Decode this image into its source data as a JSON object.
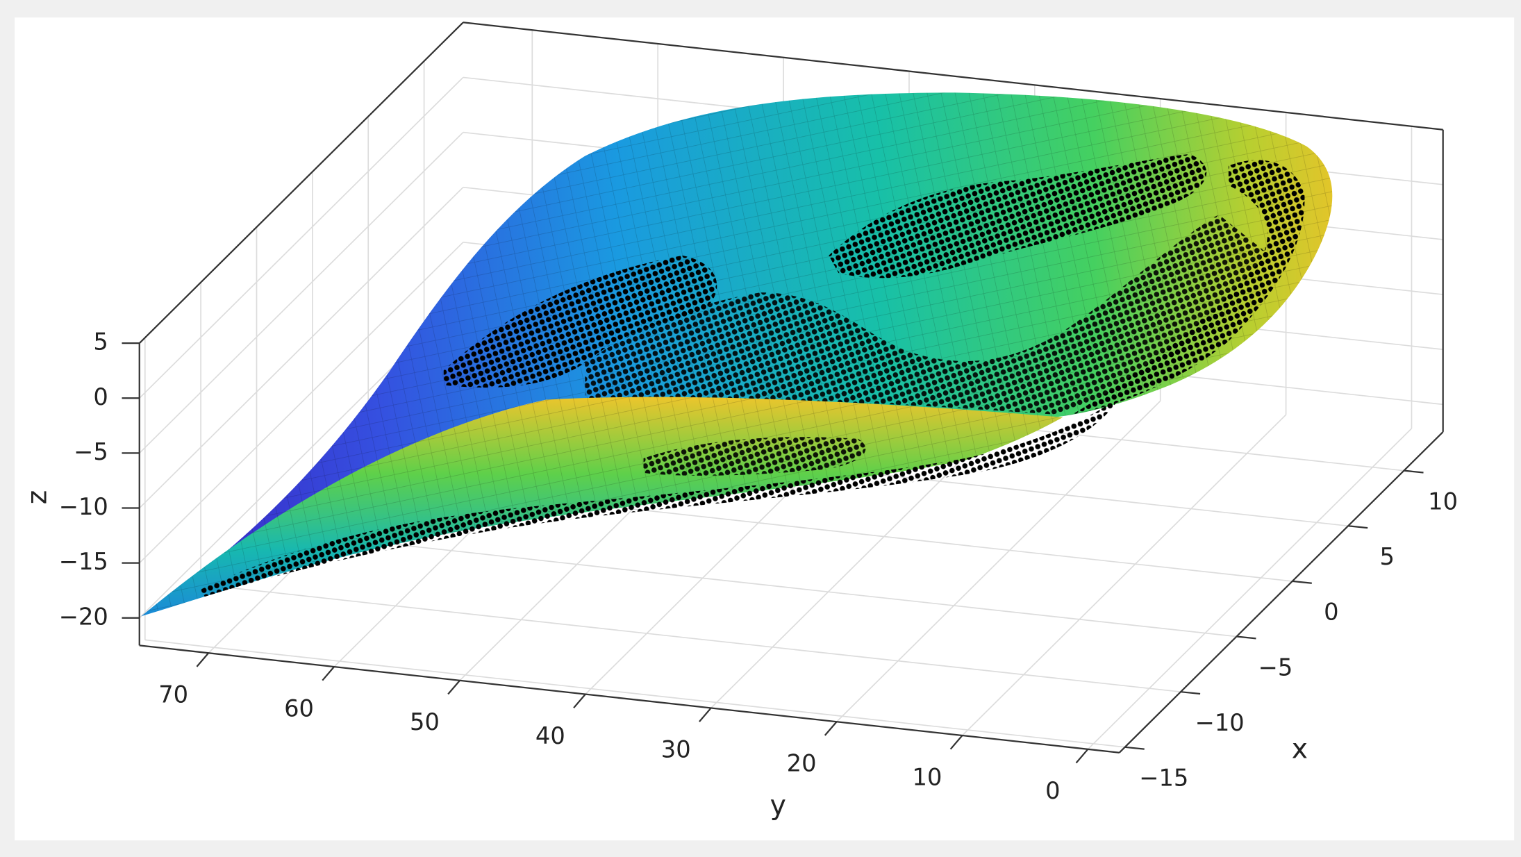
{
  "chart_data": {
    "type": "surface3d",
    "xlabel": "x",
    "ylabel": "y",
    "zlabel": "z",
    "xlim": [
      -15.5,
      13.5
    ],
    "ylim": [
      -2.5,
      75.5
    ],
    "zlim": [
      -22.5,
      5
    ],
    "xticks": [
      {
        "value": -15,
        "label": "−15"
      },
      {
        "value": -10,
        "label": "−10"
      },
      {
        "value": -5,
        "label": "−5"
      },
      0,
      5,
      10
    ],
    "yticks": [
      0,
      10,
      20,
      30,
      40,
      50,
      60,
      70
    ],
    "zticks": [
      {
        "value": -20,
        "label": "−20"
      },
      {
        "value": -15,
        "label": "−15"
      },
      {
        "value": -10,
        "label": "−10"
      },
      {
        "value": -5,
        "label": "−5"
      },
      0,
      5
    ],
    "grid": true
  }
}
